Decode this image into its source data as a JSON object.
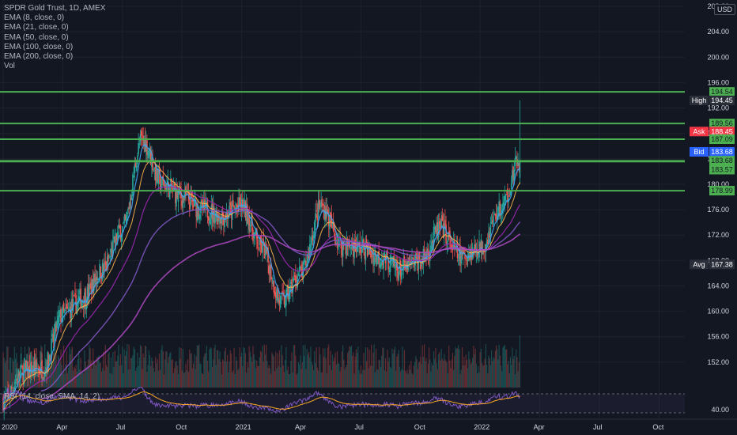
{
  "legend": {
    "symbol": "SPDR Gold Trust, 1D, AMEX",
    "indicators": [
      "EMA (8, close, 0)",
      "EMA (21, close, 0)",
      "EMA (50, close, 0)",
      "EMA (100, close, 0)",
      "EMA (200, close, 0)",
      "Vol"
    ],
    "rsi": "RSI (14, close, SMA, 14, 2)"
  },
  "currency": "USD",
  "colors": {
    "background": "#131722",
    "up": "#26a69a",
    "down": "#ef5350",
    "horizontal_level": "#4caf50",
    "ema8": "#42a5f5",
    "ema21": "#ffb74d",
    "ema50": "#9c27b0",
    "ema100": "#7e57c2",
    "ema200": "#ab47bc",
    "rsi": "#7e57c2",
    "rsi_ma": "#f9a825"
  },
  "chart_data": {
    "type": "candlestick",
    "title": "SPDR Gold Trust, 1D, AMEX",
    "ylim": [
      148,
      209
    ],
    "y_ticks": [
      152,
      156,
      160,
      164,
      168,
      172,
      176,
      180,
      184,
      188,
      192,
      196,
      200,
      204,
      208
    ],
    "x_ticks": [
      "2020",
      "Apr",
      "Jul",
      "Oct",
      "2021",
      "Apr",
      "Jul",
      "Oct",
      "2022",
      "Apr",
      "Jul",
      "Oct"
    ],
    "horizontal_levels": [
      194.54,
      189.56,
      187.09,
      183.68,
      183.57,
      178.99
    ],
    "price_tags": [
      {
        "label": "",
        "value": "194.54",
        "price": 194.54,
        "kind": "level"
      },
      {
        "label": "High",
        "value": "194.45",
        "price": 193.2,
        "kind": "dark"
      },
      {
        "label": "",
        "value": "189.56",
        "price": 189.56,
        "kind": "level"
      },
      {
        "label": "Ask",
        "value": "188.45",
        "price": 188.3,
        "kind": "ask"
      },
      {
        "label": "",
        "value": "187.09",
        "price": 187.09,
        "kind": "level"
      },
      {
        "label": "Bid",
        "value": "183.68",
        "price": 185.1,
        "kind": "bid"
      },
      {
        "label": "",
        "value": "183.68",
        "price": 183.7,
        "kind": "level"
      },
      {
        "label": "",
        "value": "183.57",
        "price": 182.3,
        "kind": "level"
      },
      {
        "label": "",
        "value": "178.99",
        "price": 178.99,
        "kind": "level"
      },
      {
        "label": "Avg",
        "value": "167.38",
        "price": 167.38,
        "kind": "dark"
      }
    ],
    "close_path": [
      [
        "2020-01",
        146.0
      ],
      [
        "2020-02",
        150.5
      ],
      [
        "2020-03",
        151.0
      ],
      [
        "2020-04",
        159.5
      ],
      [
        "2020-05",
        162.0
      ],
      [
        "2020-06",
        166.5
      ],
      [
        "2020-07",
        173.0
      ],
      [
        "2020-08",
        187.0
      ],
      [
        "2020-09",
        180.0
      ],
      [
        "2020-10",
        178.0
      ],
      [
        "2020-11",
        176.0
      ],
      [
        "2020-12",
        175.0
      ],
      [
        "2021-01",
        176.5
      ],
      [
        "2021-02",
        170.0
      ],
      [
        "2021-03",
        161.5
      ],
      [
        "2021-04",
        166.0
      ],
      [
        "2021-05",
        176.5
      ],
      [
        "2021-06",
        170.5
      ],
      [
        "2021-07",
        170.0
      ],
      [
        "2021-08",
        168.5
      ],
      [
        "2021-09",
        166.5
      ],
      [
        "2021-10",
        168.0
      ],
      [
        "2021-11",
        173.0
      ],
      [
        "2021-12",
        168.5
      ],
      [
        "2022-01",
        170.0
      ],
      [
        "2022-02",
        176.0
      ],
      [
        "2022-03",
        183.7
      ]
    ],
    "rsi_y_tick": "40.00",
    "rsi_range": [
      30,
      70
    ]
  }
}
